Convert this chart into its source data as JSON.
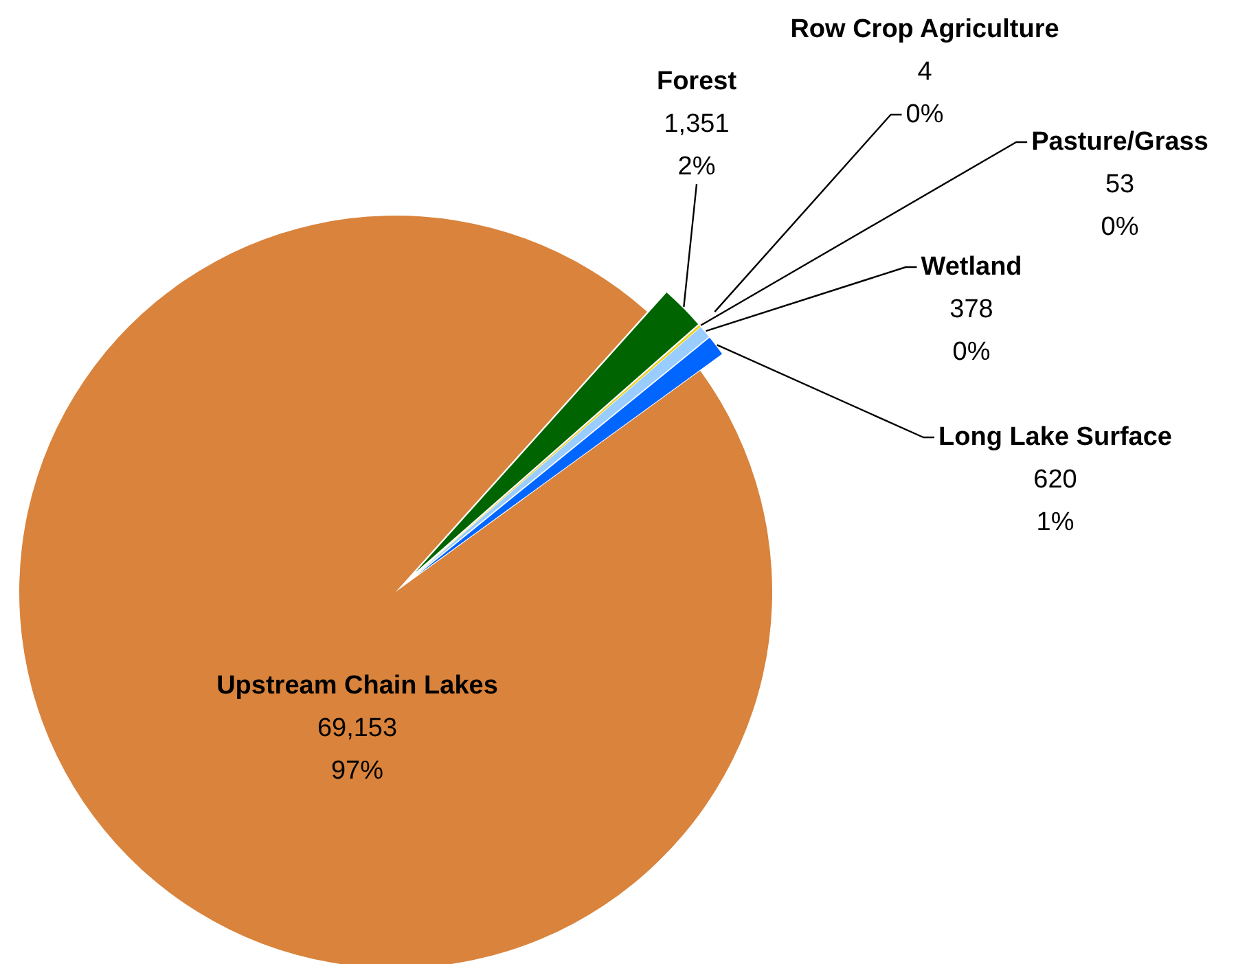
{
  "chart_data": {
    "type": "pie",
    "categories": [
      "Upstream Chain Lakes",
      "Forest",
      "Row Crop Agriculture",
      "Pasture/Grass",
      "Wetland",
      "Long Lake Surface"
    ],
    "values": [
      69153,
      1351,
      4,
      53,
      378,
      620
    ],
    "colors": [
      "#d9833c",
      "#006400",
      "#e0561e",
      "#e8d400",
      "#99ccff",
      "#0066ff"
    ],
    "value_labels": [
      "69,153\n97%",
      "1,351\n2%",
      "4\n0%",
      "53\n0%",
      "378\n0%",
      "620\n1%"
    ]
  }
}
